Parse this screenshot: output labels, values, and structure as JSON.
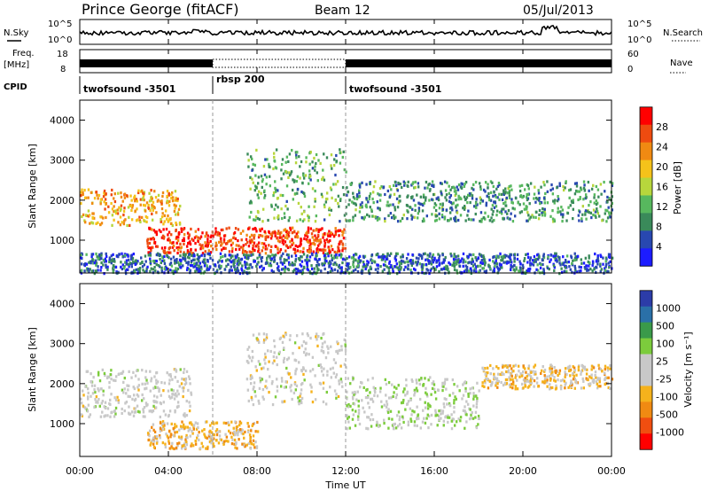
{
  "header": {
    "station": "Prince George (fitACF)",
    "beam": "Beam 12",
    "date": "05/Jul/2013"
  },
  "strip": {
    "nsky_label": "N.Sky",
    "nsearch_label": "N.Search",
    "noise_ticks_left": [
      "10^5",
      "10^0"
    ],
    "noise_ticks_right": [
      "10^5",
      "10^0"
    ],
    "freq_label": "Freq.",
    "freq_unit": "[MHz]",
    "freq_ticks": [
      "18",
      "8"
    ],
    "nave_label": "Nave",
    "nave_ticks": [
      "60",
      "0"
    ],
    "cpid_label": "CPID"
  },
  "cpid_segments": [
    {
      "name": "twofsound -3501",
      "start_h": 0,
      "end_h": 6
    },
    {
      "name": "rbsp 200",
      "start_h": 6,
      "end_h": 12
    },
    {
      "name": "twofsound -3501",
      "start_h": 12,
      "end_h": 24
    }
  ],
  "colors": {
    "power": [
      "#1c1cff",
      "#2848b0",
      "#3a8a5a",
      "#57b85e",
      "#b7d63c",
      "#f5c21a",
      "#f08a12",
      "#ee4b10",
      "#ff0000"
    ],
    "velocity": [
      "#ff0000",
      "#f04e10",
      "#f08a12",
      "#f5b21c",
      "#c8c8c8",
      "#c8c8c8",
      "#7ccc3c",
      "#3a9a4a",
      "#2a70a8",
      "#2c3ca8"
    ]
  },
  "chart_data": [
    {
      "type": "heatmap",
      "title": "Power",
      "xlabel": "Time UT",
      "ylabel": "Slant Range [km]",
      "x_ticks": [
        "00:00",
        "04:00",
        "08:00",
        "12:00",
        "16:00",
        "20:00",
        "00:00"
      ],
      "xlim": [
        0,
        24
      ],
      "ylim": [
        180,
        4500
      ],
      "y_ticks": [
        1000,
        2000,
        3000,
        4000
      ],
      "colorbar": {
        "label": "Power [dB]",
        "ticks": [
          "28",
          "24",
          "20",
          "16",
          "12",
          "8",
          "4"
        ],
        "range": [
          0,
          30
        ]
      },
      "echo_bands": [
        {
          "t0": 0,
          "t1": 4.5,
          "r0": 1400,
          "r1": 2300,
          "level": 20
        },
        {
          "t0": 3,
          "t1": 12,
          "r0": 700,
          "r1": 1350,
          "level": 26
        },
        {
          "t0": 7.5,
          "t1": 12,
          "r0": 1500,
          "r1": 3300,
          "level": 11
        },
        {
          "t0": 12,
          "t1": 24,
          "r0": 1500,
          "r1": 2500,
          "level": 9
        },
        {
          "t0": 0,
          "t1": 24,
          "r0": 200,
          "r1": 700,
          "level": 6
        }
      ]
    },
    {
      "type": "heatmap",
      "title": "Velocity",
      "xlabel": "Time UT",
      "ylabel": "Slant Range [km]",
      "x_ticks": [
        "00:00",
        "04:00",
        "08:00",
        "12:00",
        "16:00",
        "20:00",
        "00:00"
      ],
      "xlim": [
        0,
        24
      ],
      "ylim": [
        180,
        4500
      ],
      "y_ticks": [
        1000,
        2000,
        3000,
        4000
      ],
      "colorbar": {
        "label": "Velocity [m s⁻¹]",
        "ticks": [
          "1000",
          "500",
          "100",
          "25",
          "-25",
          "-100",
          "-500",
          "-1000"
        ],
        "range": [
          -1000,
          1000
        ]
      },
      "echo_bands": [
        {
          "t0": 0,
          "t1": 5,
          "r0": 1200,
          "r1": 2400,
          "level": 0
        },
        {
          "t0": 3,
          "t1": 8,
          "r0": 400,
          "r1": 1100,
          "level": -300
        },
        {
          "t0": 7.5,
          "t1": 12,
          "r0": 1500,
          "r1": 3300,
          "level": 0
        },
        {
          "t0": 12,
          "t1": 18,
          "r0": 900,
          "r1": 2200,
          "level": 150
        },
        {
          "t0": 18,
          "t1": 24,
          "r0": 1900,
          "r1": 2500,
          "level": -200
        }
      ]
    }
  ]
}
